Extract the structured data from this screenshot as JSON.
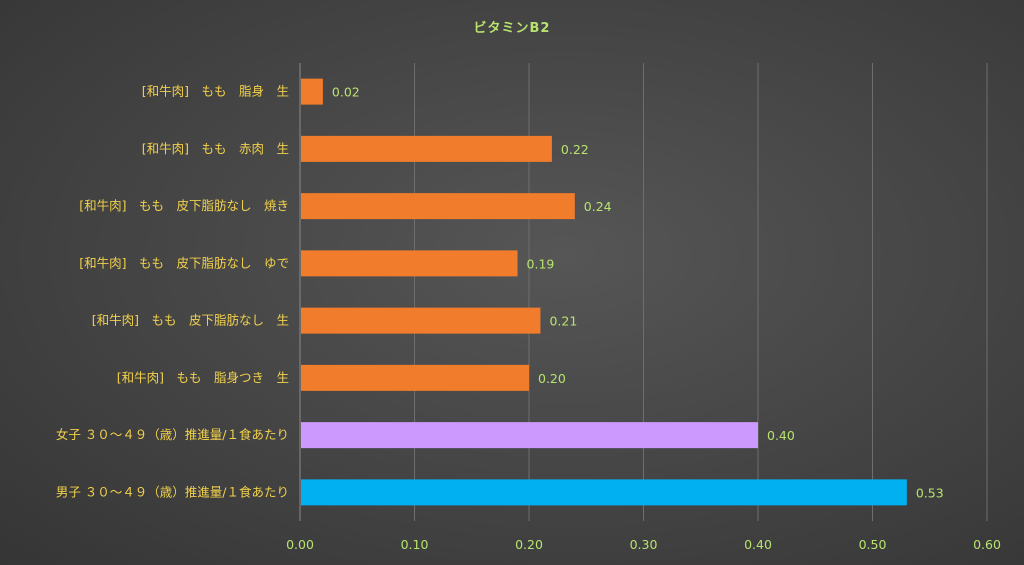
{
  "chart_data": {
    "type": "bar",
    "orientation": "horizontal",
    "title": "ビタミンB2",
    "xlabel": "",
    "ylabel": "",
    "xlim": [
      0,
      0.6
    ],
    "ticks": [
      "0.00",
      "0.10",
      "0.20",
      "0.30",
      "0.40",
      "0.50",
      "0.60"
    ],
    "grid": true,
    "categories": [
      "[和牛肉]　もも　脂身　生",
      "[和牛肉]　もも　赤肉　生",
      "[和牛肉]　もも　皮下脂肪なし　焼き",
      "[和牛肉]　もも　皮下脂肪なし　ゆで",
      "[和牛肉]　もも　皮下脂肪なし　生",
      "[和牛肉]　もも　脂身つき　生",
      "女子 ３０～４９（歳）推進量/１食あたり",
      "男子 ３０～４９（歳）推進量/１食あたり"
    ],
    "values": [
      0.02,
      0.22,
      0.24,
      0.19,
      0.21,
      0.2,
      0.4,
      0.53
    ],
    "value_labels": [
      "0.02",
      "0.22",
      "0.24",
      "0.19",
      "0.21",
      "0.20",
      "0.40",
      "0.53"
    ],
    "colors": [
      "#f07c2c",
      "#f07c2c",
      "#f07c2c",
      "#f07c2c",
      "#f07c2c",
      "#f07c2c",
      "#cc99ff",
      "#00b0f0"
    ]
  }
}
